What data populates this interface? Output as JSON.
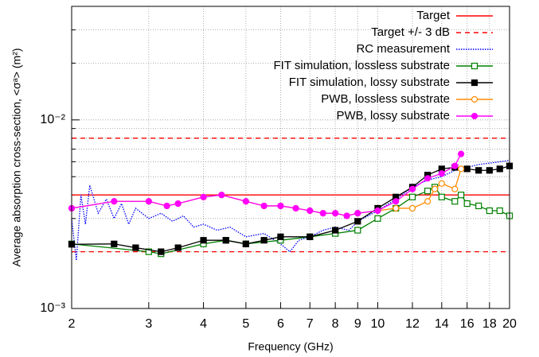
{
  "chart_data": {
    "type": "line",
    "xlabel": "Frequency (GHz)",
    "ylabel": "Average absorption cross-section, <σᵃ> (m²)",
    "log_x": true,
    "log_y": true,
    "grid": true,
    "legend": "upper right",
    "xlim": [
      2,
      20
    ],
    "ylim": [
      0.001,
      0.04
    ],
    "xticks": [
      2,
      3,
      4,
      5,
      6,
      7,
      8,
      9,
      10,
      12,
      14,
      16,
      18,
      20
    ],
    "yticks": [
      {
        "value": 0.001,
        "label": "10⁻³"
      },
      {
        "value": 0.01,
        "label": "10⁻²"
      }
    ],
    "yminorticks": [
      0.002,
      0.003,
      0.004,
      0.005,
      0.006,
      0.007,
      0.008,
      0.009,
      0.02,
      0.03,
      0.04
    ],
    "series": [
      {
        "name": "Target",
        "color": "#ff0000",
        "dash": "solid",
        "marker": "none",
        "x": [
          2,
          20
        ],
        "values": [
          0.004,
          0.004
        ]
      },
      {
        "name": "Target +/- 3 dB",
        "color": "#ff0000",
        "dash": "dashed",
        "marker": "none",
        "x": [
          2,
          20
        ],
        "values": [
          0.008,
          0.008
        ],
        "lower": [
          0.002,
          0.002
        ]
      },
      {
        "name": "RC measurement",
        "color": "#0000ff",
        "dash": "dotted",
        "marker": "none",
        "x": [
          2,
          2.05,
          2.1,
          2.15,
          2.2,
          2.3,
          2.4,
          2.5,
          2.6,
          2.7,
          2.8,
          3,
          3.2,
          3.4,
          3.6,
          3.8,
          4,
          4.3,
          4.6,
          5,
          5.5,
          6,
          6.3,
          6.6,
          7,
          7.5,
          8,
          8.6,
          9,
          10,
          11,
          12,
          13,
          14,
          15,
          16,
          17,
          18,
          19,
          20
        ],
        "values": [
          0.003,
          0.0018,
          0.004,
          0.0028,
          0.0045,
          0.0032,
          0.0038,
          0.003,
          0.0036,
          0.0028,
          0.0034,
          0.003,
          0.0032,
          0.0029,
          0.0031,
          0.0027,
          0.0028,
          0.0026,
          0.0027,
          0.0024,
          0.0025,
          0.0022,
          0.002,
          0.0023,
          0.0024,
          0.0026,
          0.0027,
          0.0026,
          0.0029,
          0.0033,
          0.0038,
          0.0044,
          0.0048,
          0.005,
          0.0054,
          0.0056,
          0.0058,
          0.0059,
          0.006,
          0.0061
        ]
      },
      {
        "name": "FIT simulation, lossless substrate",
        "color": "#008000",
        "dash": "solid",
        "marker": "square-open",
        "x": [
          2,
          3,
          3.2,
          4,
          4.5,
          5,
          6,
          7,
          8,
          9,
          10,
          11,
          12,
          13,
          13.5,
          14,
          15,
          15.5,
          16,
          17,
          18,
          19,
          20
        ],
        "values": [
          0.0022,
          0.002,
          0.00195,
          0.0022,
          0.0023,
          0.0022,
          0.0023,
          0.0024,
          0.0025,
          0.0026,
          0.003,
          0.0034,
          0.0039,
          0.0042,
          0.0044,
          0.0039,
          0.0037,
          0.004,
          0.0036,
          0.0035,
          0.0033,
          0.0033,
          0.0031
        ]
      },
      {
        "name": "FIT simulation, lossy substrate",
        "color": "#000000",
        "dash": "solid",
        "marker": "square-filled",
        "x": [
          2,
          2.5,
          2.8,
          3.2,
          3.5,
          4,
          4.5,
          5,
          5.5,
          6,
          7,
          8,
          9,
          10,
          11,
          12,
          13,
          14,
          15,
          16,
          17,
          18,
          19,
          20
        ],
        "values": [
          0.00219,
          0.0022,
          0.0021,
          0.002,
          0.0021,
          0.0023,
          0.0023,
          0.0022,
          0.0023,
          0.0024,
          0.0024,
          0.0026,
          0.0029,
          0.0034,
          0.0039,
          0.0044,
          0.0051,
          0.0055,
          0.0056,
          0.0055,
          0.0054,
          0.0054,
          0.0055,
          0.0057
        ]
      },
      {
        "name": "PWB, lossless substrate",
        "color": "#ff8c00",
        "dash": "solid",
        "marker": "circle-open",
        "x": [
          2,
          2.5,
          3,
          3.3,
          3.5,
          4,
          4.4,
          5,
          5.5,
          6,
          6.5,
          7,
          7.5,
          8,
          8.5,
          9,
          10,
          11,
          12,
          13,
          13.5,
          14,
          15,
          15.5
        ],
        "values": [
          0.0034,
          0.0037,
          0.0037,
          0.0035,
          0.0036,
          0.0039,
          0.004,
          0.0037,
          0.0035,
          0.0035,
          0.0034,
          0.0033,
          0.0032,
          0.0032,
          0.0031,
          0.0032,
          0.0033,
          0.0034,
          0.0034,
          0.0037,
          0.0043,
          0.0046,
          0.0043,
          0.0055
        ]
      },
      {
        "name": "PWB, lossy substrate",
        "color": "#ff00ff",
        "dash": "solid",
        "marker": "circle-filled",
        "x": [
          2,
          2.5,
          3,
          3.3,
          3.5,
          4,
          4.4,
          5,
          5.5,
          6,
          6.5,
          7,
          7.5,
          8,
          8.5,
          9,
          10,
          11,
          12,
          13,
          14,
          15,
          15.5
        ],
        "values": [
          0.0034,
          0.0037,
          0.0037,
          0.0035,
          0.0036,
          0.0039,
          0.004,
          0.0037,
          0.0035,
          0.0035,
          0.0034,
          0.0033,
          0.0032,
          0.0032,
          0.0031,
          0.0032,
          0.0033,
          0.0037,
          0.0043,
          0.0049,
          0.0052,
          0.0057,
          0.0066
        ]
      }
    ]
  }
}
